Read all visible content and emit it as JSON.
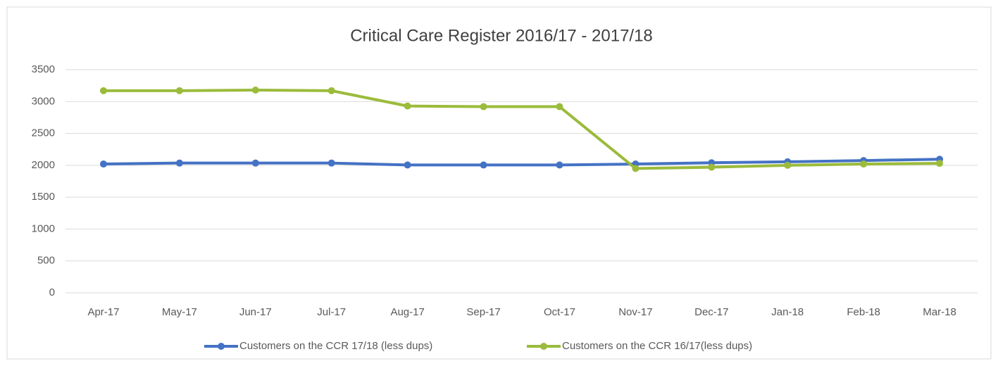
{
  "chart_data": {
    "type": "line",
    "title": "Critical Care Register 2016/17 - 2017/18",
    "categories": [
      "Apr-17",
      "May-17",
      "Jun-17",
      "Jul-17",
      "Aug-17",
      "Sep-17",
      "Oct-17",
      "Nov-17",
      "Dec-17",
      "Jan-18",
      "Feb-18",
      "Mar-18"
    ],
    "series": [
      {
        "name": "Customers on the CCR 17/18 (less dups)",
        "color": "#4472c4",
        "values": [
          2020,
          2035,
          2035,
          2035,
          2005,
          2005,
          2005,
          2020,
          2040,
          2055,
          2075,
          2095
        ]
      },
      {
        "name": "Customers on the CCR 16/17(less dups)",
        "color": "#9bbb3b",
        "values": [
          3170,
          3170,
          3180,
          3170,
          2930,
          2920,
          2920,
          1950,
          1970,
          2000,
          2020,
          2030
        ]
      }
    ],
    "ylim": [
      0,
      3500
    ],
    "yticks": [
      0,
      500,
      1000,
      1500,
      2000,
      2500,
      3000,
      3500
    ],
    "grid": true,
    "legend": "bottom"
  }
}
